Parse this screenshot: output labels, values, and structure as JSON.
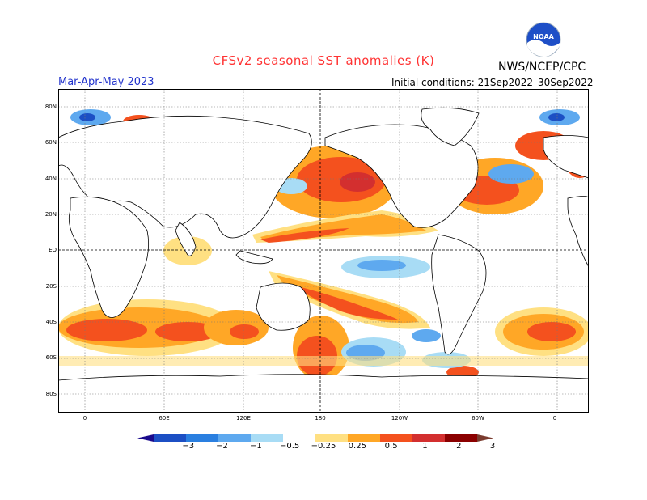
{
  "header": {
    "title": "CFSv2 seasonal SST anomalies (K)",
    "agency": "NWS/NCEP/CPC",
    "period": "Mar-Apr-May 2023",
    "initial_conditions": "Initial conditions: 21Sep2022–30Sep2022",
    "logo_text": "NOAA"
  },
  "axes": {
    "lat_labels": [
      "80N",
      "60N",
      "40N",
      "20N",
      "EQ",
      "20S",
      "40S",
      "60S",
      "80S"
    ],
    "lon_labels": [
      "0",
      "60E",
      "120E",
      "180",
      "120W",
      "60W",
      "0"
    ]
  },
  "colorbar": {
    "labels": [
      "−3",
      "−2",
      "−1",
      "−0.5",
      "−0.25",
      "0.25",
      "0.5",
      "1",
      "2",
      "3"
    ],
    "colors": [
      "#1a0a8c",
      "#1c4fc4",
      "#2a7fe0",
      "#5ea9ef",
      "#a8dcf5",
      "#ffffff",
      "#ffe082",
      "#ffa726",
      "#f4511e",
      "#d32f2f",
      "#8b0000",
      "#7a3b2e"
    ]
  }
}
